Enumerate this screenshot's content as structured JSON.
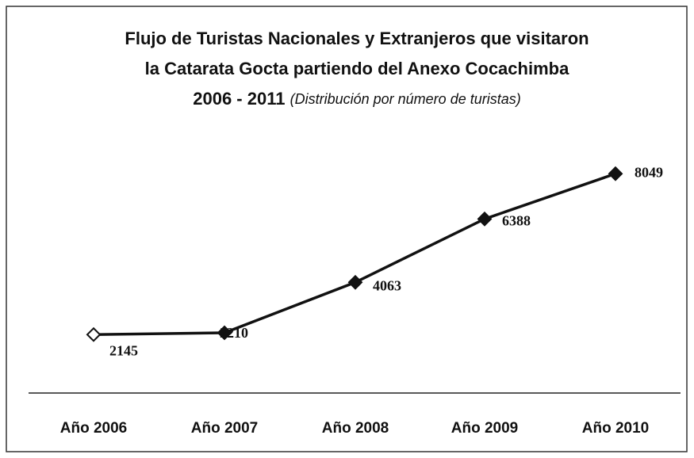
{
  "chart_data": {
    "type": "line",
    "title": [
      "Flujo de Turistas Nacionales y Extranjeros que visitaron",
      "la Catarata Gocta partiendo del Anexo Cocachimba",
      "2006 - 2011"
    ],
    "subtitle": "(Distribución por número de turistas)",
    "categories": [
      "Año 2006",
      "Año 2007",
      "Año 2008",
      "Año 2009",
      "Año 2010"
    ],
    "values": [
      2145,
      2210,
      4063,
      6388,
      8049
    ],
    "color": "#111111"
  }
}
